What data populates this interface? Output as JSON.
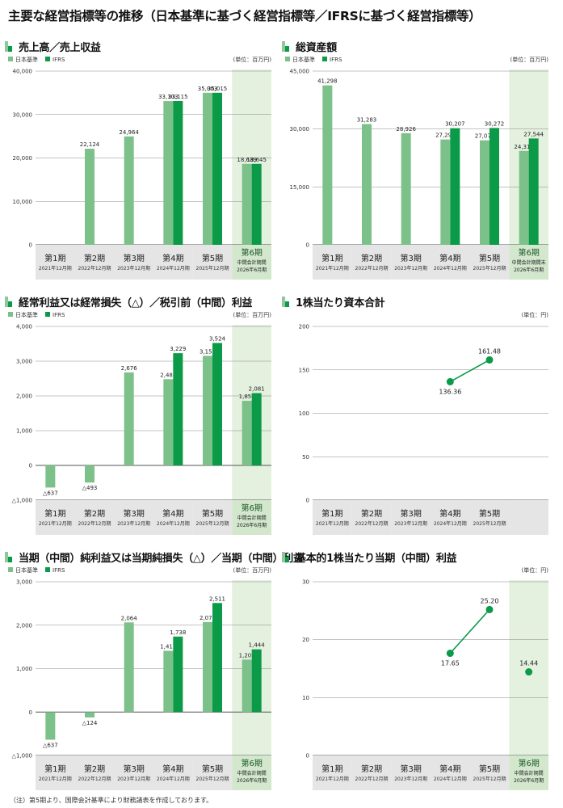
{
  "page": {
    "title": "主要な経営指標等の推移（日本基準に基づく経営指標等／IFRSに基づく経営指標等）",
    "footnote": "（注）第5期より、国際会計基準により財務諸表を作成しております。"
  },
  "colors": {
    "jgaap": "#7cc08a",
    "ifrs": "#0a9a48",
    "highlight": "#e4f1df",
    "period_box": "#e5e5e5",
    "period_box_highlight": "#d3e7cd",
    "dot": "#0a9a48"
  },
  "periods": [
    {
      "label": "第1期",
      "sub": "2021年12月期"
    },
    {
      "label": "第2期",
      "sub": "2022年12月期"
    },
    {
      "label": "第3期",
      "sub": "2023年12月期"
    },
    {
      "label": "第4期",
      "sub": "2024年12月期"
    },
    {
      "label": "第5期",
      "sub": "2025年12月期"
    }
  ],
  "chart_data": [
    {
      "id": "sales",
      "type": "bar",
      "title": "売上高／売上収益",
      "unit": "(単位：百万円)",
      "legend": [
        "日本基準",
        "IFRS"
      ],
      "categories": [
        "第1期",
        "第2期",
        "第3期",
        "第4期",
        "第5期",
        "第6期"
      ],
      "highlight_last": true,
      "last_period": {
        "label": "第6期",
        "sub1": "中間会計期間",
        "sub2": "2026年6月期"
      },
      "ylim": [
        0,
        40000
      ],
      "ticks": [
        0,
        10000,
        20000,
        30000,
        40000
      ],
      "tick_labels": [
        "0",
        "10,000",
        "20,000",
        "30,000",
        "40,000"
      ],
      "series": [
        {
          "name": "日本基準",
          "values": [
            null,
            22124,
            24964,
            33103,
            35003,
            18639
          ],
          "labels": [
            "",
            "22,124",
            "24,964",
            "33,103",
            "35,003",
            "18,639"
          ]
        },
        {
          "name": "IFRS",
          "values": [
            null,
            null,
            null,
            33115,
            35015,
            18645
          ],
          "labels": [
            "",
            "",
            "",
            "33,115",
            "35,015",
            "18,645"
          ]
        }
      ]
    },
    {
      "id": "assets",
      "type": "bar",
      "title": "総資産額",
      "unit": "(単位：百万円)",
      "legend": [
        "日本基準",
        "IFRS"
      ],
      "categories": [
        "第1期",
        "第2期",
        "第3期",
        "第4期",
        "第5期",
        "第6期"
      ],
      "highlight_last": true,
      "last_period": {
        "label": "第6期",
        "sub1": "中間会計期間末",
        "sub2": "2026年6月期"
      },
      "ylim": [
        0,
        45000
      ],
      "ticks": [
        0,
        15000,
        30000,
        45000
      ],
      "tick_labels": [
        "0",
        "15,000",
        "30,000",
        "45,000"
      ],
      "series": [
        {
          "name": "日本基準",
          "values": [
            41298,
            31283,
            28926,
            27292,
            27075,
            24319
          ],
          "labels": [
            "41,298",
            "31,283",
            "28,926",
            "27,292",
            "27,075",
            "24,319"
          ]
        },
        {
          "name": "IFRS",
          "values": [
            null,
            null,
            null,
            30207,
            30272,
            27544
          ],
          "labels": [
            "",
            "",
            "",
            "30,207",
            "30,272",
            "27,544"
          ]
        }
      ]
    },
    {
      "id": "ordinary",
      "type": "bar",
      "title": "経常利益又は経常損失（△）／税引前（中間）利益",
      "unit": "(単位：百万円)",
      "legend": [
        "日本基準",
        "IFRS"
      ],
      "categories": [
        "第1期",
        "第2期",
        "第3期",
        "第4期",
        "第5期",
        "第6期"
      ],
      "highlight_last": true,
      "last_period": {
        "label": "第6期",
        "sub1": "中間会計期間",
        "sub2": "2026年6月期"
      },
      "ylim": [
        -1000,
        4000
      ],
      "ticks": [
        -1000,
        0,
        1000,
        2000,
        3000,
        4000
      ],
      "tick_labels": [
        "△1,000",
        "0",
        "1,000",
        "2,000",
        "3,000",
        "4,000"
      ],
      "series": [
        {
          "name": "日本基準",
          "values": [
            -637,
            -493,
            2676,
            2481,
            3153,
            1859
          ],
          "labels": [
            "△637",
            "△493",
            "2,676",
            "2,481",
            "3,153",
            "1,859"
          ]
        },
        {
          "name": "IFRS",
          "values": [
            null,
            null,
            null,
            3229,
            3524,
            2081
          ],
          "labels": [
            "",
            "",
            "",
            "3,229",
            "3,524",
            "2,081"
          ]
        }
      ]
    },
    {
      "id": "bps",
      "type": "line",
      "title": "1株当たり資本合計",
      "unit": "(単位：円)",
      "categories": [
        "第1期",
        "第2期",
        "第3期",
        "第4期",
        "第5期"
      ],
      "highlight_last": false,
      "ylim": [
        0,
        200
      ],
      "ticks": [
        0,
        50,
        100,
        150,
        200
      ],
      "tick_labels": [
        "0",
        "50",
        "100",
        "150",
        "200"
      ],
      "series": [
        {
          "name": "",
          "values": [
            null,
            null,
            null,
            136.36,
            161.48
          ],
          "labels": [
            "",
            "",
            "",
            "136.36",
            "161.48"
          ]
        }
      ],
      "isolated": null
    },
    {
      "id": "net",
      "type": "bar",
      "title": "当期（中間）純利益又は当期純損失（△）／当期（中間）利益",
      "unit": "(単位：百万円)",
      "legend": [
        "日本基準",
        "IFRS"
      ],
      "categories": [
        "第1期",
        "第2期",
        "第3期",
        "第4期",
        "第5期",
        "第6期"
      ],
      "highlight_last": true,
      "last_period": {
        "label": "第6期",
        "sub1": "中間会計期間",
        "sub2": "2026年6月期"
      },
      "ylim": [
        -1000,
        3000
      ],
      "ticks": [
        -1000,
        0,
        1000,
        2000,
        3000
      ],
      "tick_labels": [
        "△1,000",
        "0",
        "1,000",
        "2,000",
        "3,000"
      ],
      "series": [
        {
          "name": "日本基準",
          "values": [
            -637,
            -124,
            2064,
            1411,
            2073,
            1207
          ],
          "labels": [
            "△637",
            "△124",
            "2,064",
            "1,411",
            "2,073",
            "1,207"
          ]
        },
        {
          "name": "IFRS",
          "values": [
            null,
            null,
            null,
            1738,
            2511,
            1444
          ],
          "labels": [
            "",
            "",
            "",
            "1,738",
            "2,511",
            "1,444"
          ]
        }
      ]
    },
    {
      "id": "eps",
      "type": "line",
      "title": "基本的1株当たり当期（中間）利益",
      "unit": "(単位：円)",
      "categories": [
        "第1期",
        "第2期",
        "第3期",
        "第4期",
        "第5期",
        "第6期"
      ],
      "highlight_last": true,
      "last_period": {
        "label": "第6期",
        "sub1": "中間会計期間",
        "sub2": "2026年6月期"
      },
      "ylim": [
        0,
        30
      ],
      "ticks": [
        0,
        10,
        20,
        30
      ],
      "tick_labels": [
        "0",
        "10",
        "20",
        "30"
      ],
      "series": [
        {
          "name": "",
          "values": [
            null,
            null,
            null,
            17.65,
            25.2,
            14.44
          ],
          "labels": [
            "",
            "",
            "",
            "17.65",
            "25.20",
            "14.44"
          ]
        }
      ],
      "isolated": 5
    }
  ]
}
